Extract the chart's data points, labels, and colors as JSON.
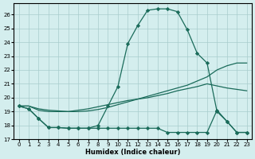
{
  "xlabel": "Humidex (Indice chaleur)",
  "background_color": "#d4eeee",
  "grid_color": "#a8cccc",
  "line_color": "#1a6b5a",
  "xlim": [
    -0.5,
    23.5
  ],
  "ylim": [
    17,
    26.8
  ],
  "yticks": [
    17,
    18,
    19,
    20,
    21,
    22,
    23,
    24,
    25,
    26
  ],
  "xticks": [
    0,
    1,
    2,
    3,
    4,
    5,
    6,
    7,
    8,
    9,
    10,
    11,
    12,
    13,
    14,
    15,
    16,
    17,
    18,
    19,
    20,
    21,
    22,
    23
  ],
  "line1_x": [
    0,
    1,
    2,
    3,
    4,
    5,
    6,
    7,
    8,
    9,
    10,
    11,
    12,
    13,
    14,
    15,
    16,
    17,
    18,
    19,
    20,
    21,
    22,
    23
  ],
  "line1_y": [
    19.4,
    19.2,
    18.5,
    17.85,
    17.85,
    17.8,
    17.8,
    17.8,
    18.0,
    19.4,
    20.8,
    23.9,
    25.2,
    26.3,
    26.4,
    26.4,
    26.2,
    24.9,
    23.2,
    22.5,
    19.0,
    18.3,
    17.5,
    17.5
  ],
  "line2_x": [
    0,
    1,
    2,
    3,
    4,
    5,
    6,
    7,
    8,
    9,
    10,
    11,
    12,
    13,
    14,
    15,
    16,
    17,
    18,
    19,
    20,
    21,
    22,
    23
  ],
  "line2_y": [
    19.4,
    19.4,
    19.1,
    19.0,
    19.0,
    19.0,
    19.1,
    19.2,
    19.35,
    19.5,
    19.65,
    19.8,
    19.9,
    20.0,
    20.15,
    20.3,
    20.5,
    20.65,
    20.8,
    21.0,
    20.85,
    20.7,
    20.6,
    20.5
  ],
  "line3_x": [
    0,
    1,
    2,
    3,
    4,
    5,
    6,
    7,
    8,
    9,
    10,
    11,
    12,
    13,
    14,
    15,
    16,
    17,
    18,
    19,
    20,
    21,
    22,
    23
  ],
  "line3_y": [
    19.4,
    19.4,
    19.2,
    19.1,
    19.05,
    19.0,
    19.0,
    19.05,
    19.15,
    19.3,
    19.5,
    19.7,
    19.9,
    20.1,
    20.3,
    20.5,
    20.7,
    20.9,
    21.2,
    21.5,
    22.0,
    22.3,
    22.5,
    22.5
  ],
  "line4_x": [
    0,
    1,
    2,
    3,
    4,
    5,
    6,
    7,
    8,
    9,
    10,
    11,
    12,
    13,
    14,
    15,
    16,
    17,
    18,
    19,
    20,
    21,
    22,
    23
  ],
  "line4_y": [
    19.4,
    19.2,
    18.5,
    17.85,
    17.85,
    17.8,
    17.8,
    17.8,
    17.8,
    17.8,
    17.8,
    17.8,
    17.8,
    17.8,
    17.8,
    17.5,
    17.5,
    17.5,
    17.5,
    17.5,
    19.1,
    18.3,
    17.5,
    17.5
  ]
}
